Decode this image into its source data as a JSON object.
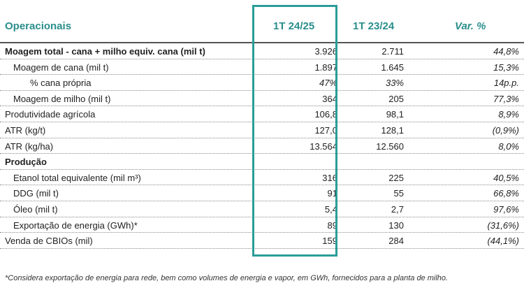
{
  "header": {
    "col_label": "Operacionais",
    "col_current": "1T 24/25",
    "col_previous": "1T 23/24",
    "col_var": "Var. %"
  },
  "rows": [
    {
      "label": "Moagem total - cana + milho equiv. cana (mil t)",
      "current": "3.926",
      "previous": "2.711",
      "var": "44,8%"
    },
    {
      "label": "Moagem de cana (mil t)",
      "current": "1.897",
      "previous": "1.645",
      "var": "15,3%"
    },
    {
      "label": "% cana própria",
      "current": "47%",
      "previous": "33%",
      "var": "14p.p."
    },
    {
      "label": "Moagem de milho (mil t)",
      "current": "364",
      "previous": "205",
      "var": "77,3%"
    },
    {
      "label": "Produtividade agrícola",
      "current": "106,8",
      "previous": "98,1",
      "var": "8,9%"
    },
    {
      "label": "ATR (kg/t)",
      "current": "127,0",
      "previous": "128,1",
      "var": "(0,9%)"
    },
    {
      "label": "ATR (kg/ha)",
      "current": "13.564",
      "previous": "12.560",
      "var": "8,0%"
    },
    {
      "label": "Produção",
      "current": "",
      "previous": "",
      "var": ""
    },
    {
      "label": "Etanol total equivalente (mil m³)",
      "current": "316",
      "previous": "225",
      "var": "40,5%"
    },
    {
      "label": "DDG (mil t)",
      "current": "91",
      "previous": "55",
      "var": "66,8%"
    },
    {
      "label": "Óleo (mil t)",
      "current": "5,4",
      "previous": "2,7",
      "var": "97,6%"
    },
    {
      "label": "Exportação de energia (GWh)*",
      "current": "89",
      "previous": "130",
      "var": "(31,6%)"
    },
    {
      "label": "Venda de CBIOs (mil)",
      "current": "159",
      "previous": "284",
      "var": "(44,1%)"
    }
  ],
  "footnote": "*Considera exportação de energia para rede, bem como volumes de energia e vapor, em GWh, fornecidos para a planta de milho."
}
